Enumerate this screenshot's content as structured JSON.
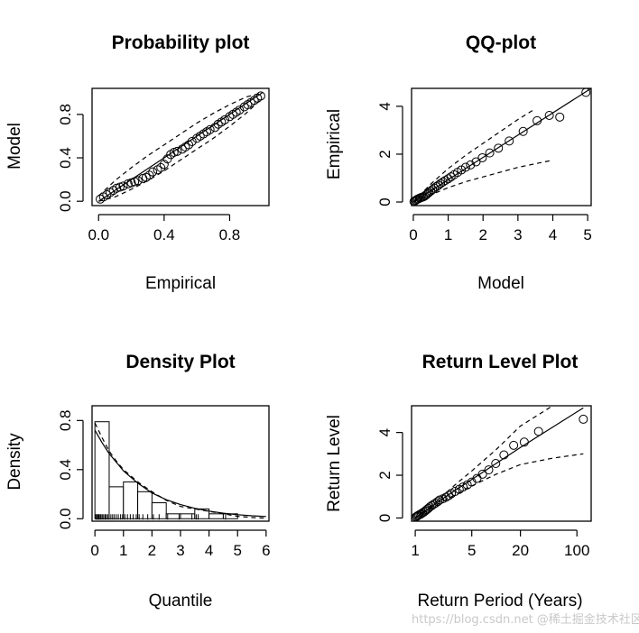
{
  "chart_data": [
    {
      "type": "scatter",
      "title": "Probability plot",
      "xlabel": "Empirical",
      "ylabel": "Model",
      "xlim": [
        -0.04,
        1.04
      ],
      "ylim": [
        -0.04,
        1.04
      ],
      "xticks": [
        0.0,
        0.4,
        0.8
      ],
      "xtick_labels": [
        "0.0",
        "0.4",
        "0.8"
      ],
      "yticks": [
        0.0,
        0.4,
        0.8
      ],
      "ytick_labels": [
        "0.0",
        "0.4",
        "0.8"
      ],
      "points": [
        [
          0.01,
          0.02
        ],
        [
          0.03,
          0.04
        ],
        [
          0.05,
          0.06
        ],
        [
          0.07,
          0.08
        ],
        [
          0.09,
          0.1
        ],
        [
          0.11,
          0.12
        ],
        [
          0.13,
          0.13
        ],
        [
          0.15,
          0.14
        ],
        [
          0.18,
          0.16
        ],
        [
          0.2,
          0.17
        ],
        [
          0.22,
          0.18
        ],
        [
          0.24,
          0.19
        ],
        [
          0.27,
          0.21
        ],
        [
          0.29,
          0.22
        ],
        [
          0.31,
          0.24
        ],
        [
          0.33,
          0.27
        ],
        [
          0.36,
          0.29
        ],
        [
          0.38,
          0.31
        ],
        [
          0.4,
          0.34
        ],
        [
          0.42,
          0.39
        ],
        [
          0.44,
          0.43
        ],
        [
          0.46,
          0.45
        ],
        [
          0.48,
          0.46
        ],
        [
          0.51,
          0.48
        ],
        [
          0.53,
          0.5
        ],
        [
          0.55,
          0.52
        ],
        [
          0.57,
          0.55
        ],
        [
          0.6,
          0.58
        ],
        [
          0.62,
          0.6
        ],
        [
          0.64,
          0.62
        ],
        [
          0.66,
          0.64
        ],
        [
          0.68,
          0.66
        ],
        [
          0.71,
          0.68
        ],
        [
          0.73,
          0.71
        ],
        [
          0.75,
          0.73
        ],
        [
          0.77,
          0.75
        ],
        [
          0.8,
          0.78
        ],
        [
          0.82,
          0.8
        ],
        [
          0.84,
          0.82
        ],
        [
          0.86,
          0.84
        ],
        [
          0.89,
          0.87
        ],
        [
          0.91,
          0.89
        ],
        [
          0.93,
          0.91
        ],
        [
          0.95,
          0.93
        ],
        [
          0.97,
          0.95
        ],
        [
          0.99,
          0.97
        ]
      ],
      "reference_line": [
        [
          0,
          0
        ],
        [
          1,
          1
        ]
      ],
      "upper_band": [
        [
          0.0,
          0.05
        ],
        [
          0.1,
          0.19
        ],
        [
          0.2,
          0.31
        ],
        [
          0.3,
          0.42
        ],
        [
          0.4,
          0.52
        ],
        [
          0.5,
          0.62
        ],
        [
          0.6,
          0.72
        ],
        [
          0.7,
          0.81
        ],
        [
          0.8,
          0.89
        ],
        [
          0.9,
          0.96
        ],
        [
          1.0,
          1.0
        ]
      ],
      "lower_band": [
        [
          0.0,
          0.0
        ],
        [
          0.1,
          0.04
        ],
        [
          0.2,
          0.11
        ],
        [
          0.3,
          0.19
        ],
        [
          0.4,
          0.28
        ],
        [
          0.5,
          0.38
        ],
        [
          0.6,
          0.48
        ],
        [
          0.7,
          0.58
        ],
        [
          0.8,
          0.69
        ],
        [
          0.9,
          0.81
        ],
        [
          1.0,
          0.95
        ]
      ]
    },
    {
      "type": "scatter",
      "title": "QQ-plot",
      "xlabel": "Model",
      "ylabel": "Empirical",
      "xlim": [
        -0.05,
        5.1
      ],
      "ylim": [
        -0.15,
        4.75
      ],
      "xticks": [
        0,
        1,
        2,
        3,
        4,
        5
      ],
      "xtick_labels": [
        "0",
        "1",
        "2",
        "3",
        "4",
        "5"
      ],
      "yticks": [
        0,
        2,
        4
      ],
      "ytick_labels": [
        "0",
        "2",
        "4"
      ],
      "points": [
        [
          0.02,
          0.02
        ],
        [
          0.05,
          0.05
        ],
        [
          0.08,
          0.08
        ],
        [
          0.11,
          0.11
        ],
        [
          0.14,
          0.13
        ],
        [
          0.18,
          0.16
        ],
        [
          0.21,
          0.18
        ],
        [
          0.25,
          0.2
        ],
        [
          0.29,
          0.22
        ],
        [
          0.33,
          0.25
        ],
        [
          0.37,
          0.3
        ],
        [
          0.41,
          0.35
        ],
        [
          0.45,
          0.4
        ],
        [
          0.5,
          0.46
        ],
        [
          0.55,
          0.52
        ],
        [
          0.6,
          0.58
        ],
        [
          0.66,
          0.64
        ],
        [
          0.72,
          0.7
        ],
        [
          0.78,
          0.77
        ],
        [
          0.85,
          0.84
        ],
        [
          0.92,
          0.9
        ],
        [
          1.0,
          0.97
        ],
        [
          1.08,
          1.05
        ],
        [
          1.17,
          1.14
        ],
        [
          1.27,
          1.24
        ],
        [
          1.38,
          1.34
        ],
        [
          1.5,
          1.45
        ],
        [
          1.64,
          1.55
        ],
        [
          1.8,
          1.68
        ],
        [
          1.98,
          1.85
        ],
        [
          2.19,
          2.05
        ],
        [
          2.44,
          2.25
        ],
        [
          2.75,
          2.55
        ],
        [
          3.15,
          2.95
        ],
        [
          3.55,
          3.4
        ],
        [
          3.9,
          3.62
        ],
        [
          4.2,
          3.55
        ],
        [
          4.95,
          4.58
        ]
      ],
      "reference_line": [
        [
          0,
          0
        ],
        [
          5.1,
          4.75
        ]
      ],
      "upper_band": [
        [
          0.0,
          0.0
        ],
        [
          0.5,
          0.75
        ],
        [
          1.0,
          1.4
        ],
        [
          1.5,
          1.95
        ],
        [
          2.0,
          2.45
        ],
        [
          2.5,
          2.95
        ],
        [
          3.0,
          3.45
        ],
        [
          3.5,
          3.9
        ]
      ],
      "lower_band": [
        [
          0.0,
          0.0
        ],
        [
          0.5,
          0.3
        ],
        [
          1.0,
          0.6
        ],
        [
          1.5,
          0.85
        ],
        [
          2.0,
          1.05
        ],
        [
          2.5,
          1.25
        ],
        [
          3.0,
          1.45
        ],
        [
          3.5,
          1.6
        ],
        [
          4.0,
          1.75
        ]
      ]
    },
    {
      "type": "histogram",
      "title": "Density Plot",
      "xlabel": "Quantile",
      "ylabel": "Density",
      "xlim": [
        -0.1,
        6.1
      ],
      "ylim": [
        -0.02,
        0.92
      ],
      "xticks": [
        0,
        1,
        2,
        3,
        4,
        5,
        6
      ],
      "xtick_labels": [
        "0",
        "1",
        "2",
        "3",
        "4",
        "5",
        "6"
      ],
      "yticks": [
        0.0,
        0.4,
        0.8
      ],
      "ytick_labels": [
        "0.0",
        "0.4",
        "0.8"
      ],
      "bins": [
        [
          0,
          0.5
        ],
        [
          0.5,
          1
        ],
        [
          1,
          1.5
        ],
        [
          1.5,
          2
        ],
        [
          2,
          2.5
        ],
        [
          2.5,
          3
        ],
        [
          3,
          3.5
        ],
        [
          3.5,
          4
        ],
        [
          4,
          4.5
        ],
        [
          4.5,
          5
        ]
      ],
      "values": [
        0.79,
        0.26,
        0.3,
        0.22,
        0.13,
        0.04,
        0.04,
        0.08,
        0.04,
        0.04
      ],
      "density_curve": [
        [
          0,
          0.72
        ],
        [
          0.25,
          0.62
        ],
        [
          0.5,
          0.53
        ],
        [
          0.75,
          0.46
        ],
        [
          1,
          0.39
        ],
        [
          1.5,
          0.29
        ],
        [
          2,
          0.21
        ],
        [
          2.5,
          0.155
        ],
        [
          3,
          0.115
        ],
        [
          3.5,
          0.085
        ],
        [
          4,
          0.062
        ],
        [
          4.5,
          0.045
        ],
        [
          5,
          0.033
        ],
        [
          5.5,
          0.024
        ],
        [
          6,
          0.018
        ]
      ],
      "empirical_curve": [
        [
          0,
          0.78
        ],
        [
          0.25,
          0.66
        ],
        [
          0.5,
          0.55
        ],
        [
          0.75,
          0.47
        ],
        [
          1,
          0.4
        ],
        [
          1.5,
          0.3
        ],
        [
          2,
          0.22
        ],
        [
          2.5,
          0.15
        ],
        [
          3,
          0.1
        ],
        [
          3.5,
          0.08
        ],
        [
          4,
          0.06
        ],
        [
          4.5,
          0.04
        ],
        [
          5,
          0.02
        ],
        [
          5.5,
          0.01
        ],
        [
          6,
          0.005
        ]
      ],
      "rug": [
        0.03,
        0.06,
        0.1,
        0.12,
        0.15,
        0.19,
        0.22,
        0.27,
        0.31,
        0.36,
        0.4,
        0.45,
        0.5,
        0.56,
        0.62,
        0.68,
        0.75,
        0.82,
        0.9,
        0.97,
        1.05,
        1.14,
        1.24,
        1.34,
        1.45,
        1.55,
        1.68,
        1.85,
        2.05,
        2.25,
        2.55,
        2.95,
        3.4,
        3.55,
        3.62,
        4.58
      ]
    },
    {
      "type": "scatter",
      "title": "Return Level Plot",
      "xlabel": "Return Period (Years)",
      "ylabel": "Return Level",
      "x_scale": "log",
      "xlim": [
        0.9,
        150
      ],
      "ylim": [
        -0.15,
        5.25
      ],
      "xticks": [
        1,
        5,
        20,
        100
      ],
      "xtick_labels": [
        "1",
        "5",
        "20",
        "100"
      ],
      "yticks": [
        0,
        2,
        4
      ],
      "ytick_labels": [
        "0",
        "2",
        "4"
      ],
      "points": [
        [
          1.02,
          0.05
        ],
        [
          1.05,
          0.08
        ],
        [
          1.08,
          0.11
        ],
        [
          1.11,
          0.14
        ],
        [
          1.15,
          0.17
        ],
        [
          1.19,
          0.2
        ],
        [
          1.23,
          0.24
        ],
        [
          1.28,
          0.28
        ],
        [
          1.33,
          0.33
        ],
        [
          1.39,
          0.39
        ],
        [
          1.45,
          0.45
        ],
        [
          1.52,
          0.52
        ],
        [
          1.6,
          0.58
        ],
        [
          1.69,
          0.64
        ],
        [
          1.79,
          0.7
        ],
        [
          1.9,
          0.77
        ],
        [
          2.0,
          0.84
        ],
        [
          2.2,
          0.9
        ],
        [
          2.4,
          0.97
        ],
        [
          2.6,
          1.05
        ],
        [
          2.8,
          1.14
        ],
        [
          3.1,
          1.24
        ],
        [
          3.5,
          1.34
        ],
        [
          3.9,
          1.45
        ],
        [
          4.4,
          1.55
        ],
        [
          5.0,
          1.68
        ],
        [
          5.8,
          1.85
        ],
        [
          6.8,
          2.05
        ],
        [
          8.1,
          2.25
        ],
        [
          9.9,
          2.55
        ],
        [
          12.5,
          2.95
        ],
        [
          16.5,
          3.4
        ],
        [
          22.3,
          3.55
        ],
        [
          33.5,
          4.05
        ],
        [
          120,
          4.62
        ]
      ],
      "fit_line": [
        [
          1,
          0
        ],
        [
          1.5,
          0.45
        ],
        [
          2,
          0.8
        ],
        [
          3,
          1.25
        ],
        [
          5,
          1.8
        ],
        [
          10,
          2.55
        ],
        [
          20,
          3.3
        ],
        [
          50,
          4.25
        ],
        [
          120,
          5.15
        ]
      ],
      "upper_band": [
        [
          1,
          0
        ],
        [
          1.5,
          0.5
        ],
        [
          2,
          0.9
        ],
        [
          3,
          1.5
        ],
        [
          5,
          2.2
        ],
        [
          10,
          3.2
        ],
        [
          20,
          4.3
        ],
        [
          50,
          5.25
        ]
      ],
      "lower_band": [
        [
          1,
          0
        ],
        [
          1.5,
          0.4
        ],
        [
          2,
          0.7
        ],
        [
          3,
          1.05
        ],
        [
          5,
          1.5
        ],
        [
          10,
          2.05
        ],
        [
          20,
          2.5
        ],
        [
          50,
          2.8
        ],
        [
          120,
          3.0
        ]
      ]
    }
  ],
  "watermark": "https://blog.csdn.net @稀土掘金技术社区"
}
